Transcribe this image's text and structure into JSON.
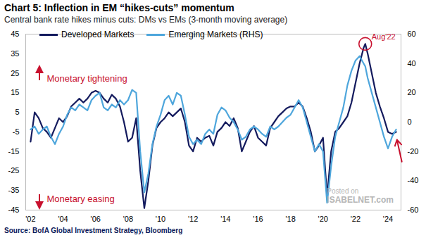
{
  "chart_data": {
    "type": "line",
    "title": "Chart 5: Inflection in EM “hikes-cuts” momentum",
    "subtitle": "Central bank rate hikes minus cuts: DMs vs EMs (3-month moving average)",
    "source": "Source: BofA Global Investment Strategy, Bloomberg",
    "annotations": [
      "Monetary tightening",
      "Monetary easing",
      "Aug'22",
      "Posted on",
      "ISABELNET.com"
    ],
    "x": [
      2002.0,
      2002.25,
      2002.5,
      2002.75,
      2003.0,
      2003.25,
      2003.5,
      2003.75,
      2004.0,
      2004.25,
      2004.5,
      2004.75,
      2005.0,
      2005.25,
      2005.5,
      2005.75,
      2006.0,
      2006.25,
      2006.5,
      2006.75,
      2007.0,
      2007.25,
      2007.5,
      2007.75,
      2008.0,
      2008.25,
      2008.5,
      2008.75,
      2009.0,
      2009.25,
      2009.5,
      2009.75,
      2010.0,
      2010.25,
      2010.5,
      2010.75,
      2011.0,
      2011.25,
      2011.5,
      2011.75,
      2012.0,
      2012.25,
      2012.5,
      2012.75,
      2013.0,
      2013.25,
      2013.5,
      2013.75,
      2014.0,
      2014.25,
      2014.5,
      2014.75,
      2015.0,
      2015.25,
      2015.5,
      2015.75,
      2016.0,
      2016.25,
      2016.5,
      2016.75,
      2017.0,
      2017.25,
      2017.5,
      2017.75,
      2018.0,
      2018.25,
      2018.5,
      2018.75,
      2019.0,
      2019.25,
      2019.5,
      2019.75,
      2020.0,
      2020.25,
      2020.5,
      2020.75,
      2021.0,
      2021.25,
      2021.5,
      2021.75,
      2022.0,
      2022.25,
      2022.5,
      2022.6,
      2022.75,
      2023.0,
      2023.25,
      2023.5,
      2023.75,
      2024.0,
      2024.25,
      2024.5
    ],
    "series": [
      {
        "name": "Developed Markets",
        "color": "#141b5e",
        "axis": "y",
        "values": [
          -10,
          5,
          2,
          -3,
          -5,
          -8,
          -3,
          2,
          0,
          3,
          8,
          10,
          12,
          10,
          12,
          15,
          16,
          15,
          12,
          10,
          14,
          12,
          8,
          0,
          -10,
          -8,
          2,
          -25,
          -44,
          -30,
          -12,
          -3,
          0,
          2,
          5,
          3,
          5,
          7,
          0,
          -12,
          -15,
          -8,
          -10,
          -8,
          -7,
          -12,
          -5,
          -3,
          0,
          -2,
          2,
          -3,
          -15,
          -10,
          -5,
          -2,
          -8,
          -10,
          -12,
          -3,
          0,
          3,
          5,
          7,
          8,
          8,
          10,
          8,
          2,
          -5,
          -15,
          -12,
          -8,
          -38,
          -15,
          -5,
          -3,
          0,
          3,
          10,
          20,
          30,
          38,
          40,
          35,
          25,
          15,
          8,
          2,
          -5,
          -6,
          -5
        ]
      },
      {
        "name": "Emerging Markets (RHS)",
        "color": "#4ea6dc",
        "axis": "y2",
        "values": [
          -5,
          -3,
          -8,
          -5,
          -3,
          -10,
          -15,
          -8,
          -3,
          5,
          10,
          8,
          12,
          10,
          8,
          15,
          18,
          20,
          10,
          8,
          12,
          10,
          15,
          12,
          15,
          22,
          20,
          -20,
          -48,
          -35,
          -15,
          -3,
          5,
          15,
          18,
          12,
          20,
          18,
          5,
          -10,
          -15,
          -12,
          -15,
          -8,
          -5,
          -8,
          5,
          10,
          8,
          3,
          0,
          -5,
          -12,
          -10,
          -5,
          -3,
          -5,
          -8,
          -10,
          -3,
          -5,
          -3,
          0,
          3,
          5,
          10,
          15,
          10,
          0,
          -10,
          -20,
          -15,
          -20,
          -55,
          -30,
          -10,
          0,
          10,
          25,
          35,
          42,
          45,
          40,
          38,
          30,
          20,
          10,
          0,
          -10,
          -18,
          -10,
          -5
        ]
      }
    ],
    "xlim": [
      2001.7,
      2024.8
    ],
    "xticks": [
      {
        "value": 2002,
        "label": "'02"
      },
      {
        "value": 2004,
        "label": "'04"
      },
      {
        "value": 2006,
        "label": "'06"
      },
      {
        "value": 2008,
        "label": "'08"
      },
      {
        "value": 2010,
        "label": "'10"
      },
      {
        "value": 2012,
        "label": "'12"
      },
      {
        "value": 2014,
        "label": "'14"
      },
      {
        "value": 2016,
        "label": "'16"
      },
      {
        "value": 2018,
        "label": "'18"
      },
      {
        "value": 2020,
        "label": "'20"
      },
      {
        "value": 2022,
        "label": "'22"
      },
      {
        "value": 2024,
        "label": "'24"
      }
    ],
    "ylim": [
      -45,
      45
    ],
    "yticks": [
      -45,
      -35,
      -25,
      -15,
      -5,
      5,
      15,
      25,
      35,
      45
    ],
    "y2lim": [
      -60,
      60
    ],
    "y2ticks": [
      -60,
      -40,
      -20,
      0,
      20,
      40,
      60
    ],
    "grid": false,
    "legend": "top-left"
  }
}
